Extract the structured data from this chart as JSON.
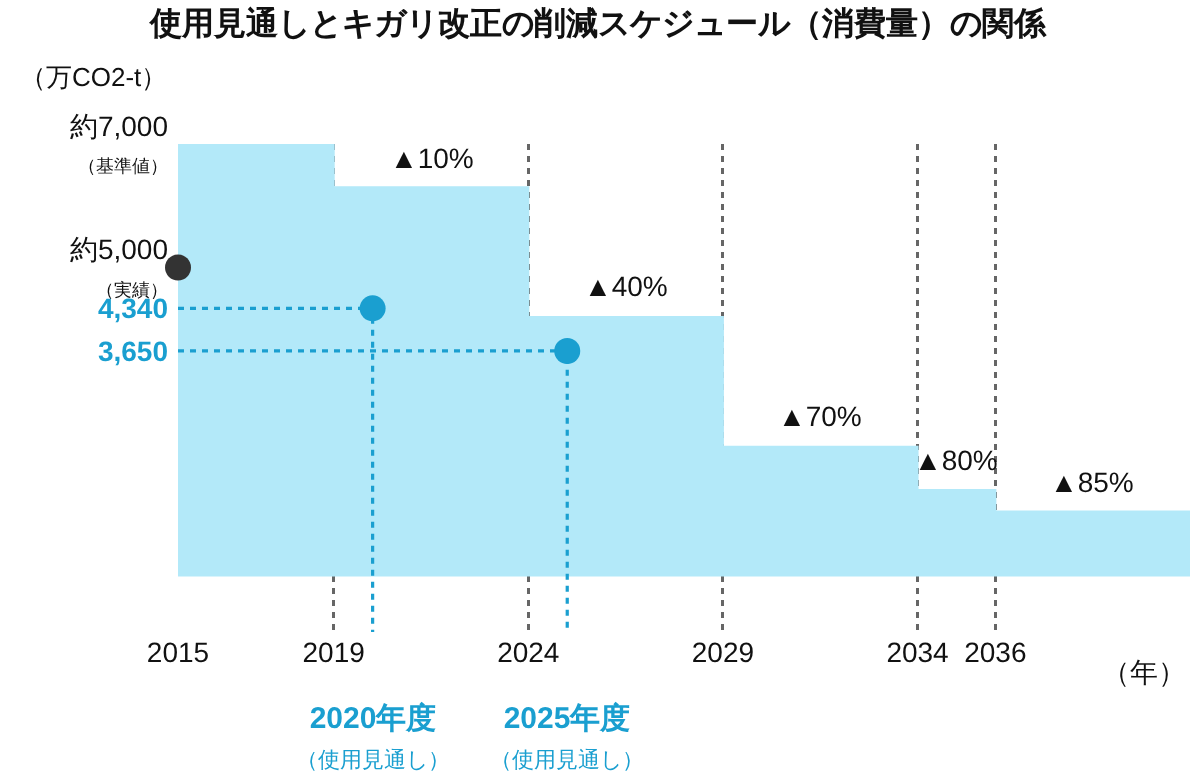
{
  "chart_data": {
    "type": "area",
    "title": "使用見通しとキガリ改正の削減スケジュール（消費量）の関係",
    "ylabel": "（万CO2-t）",
    "xlabel": "（年）",
    "xlim": [
      2015,
      2041
    ],
    "xticks": [
      2015,
      2019,
      2024,
      2029,
      2034,
      2036
    ],
    "ylim": [
      -900,
      7000
    ],
    "yticks": [
      {
        "value": 7000,
        "label": "約7,000（基準値）"
      },
      {
        "value": 5000,
        "label": "約5,000（実績）"
      },
      {
        "value": 4340,
        "label": "4,340"
      },
      {
        "value": 3650,
        "label": "3,650"
      }
    ],
    "grid": "x",
    "series": [
      {
        "marker": "none",
        "color": "#b3e9f9",
        "x": [
          2015,
          2019,
          2019,
          2024,
          2024,
          2029,
          2029,
          2034,
          2034,
          2036,
          2036,
          2041
        ],
        "values": [
          7000,
          7000,
          6300,
          6300,
          4200,
          4200,
          2100,
          2100,
          1400,
          1400,
          1050,
          1050
        ]
      },
      {
        "type": "line",
        "line_style": "dotted",
        "marker": "none",
        "color": "#1a9fd0",
        "x": [
          2015,
          2020,
          2020
        ],
        "values": [
          4340,
          4340,
          -900
        ]
      },
      {
        "type": "line",
        "line_style": "dotted",
        "marker": "none",
        "color": "#1a9fd0",
        "x": [
          2015,
          2025,
          2025
        ],
        "values": [
          3650,
          3650,
          -900
        ]
      },
      {
        "type": "scatter",
        "marker": "circle",
        "color": "#333333",
        "x": [
          2015
        ],
        "values": [
          5000
        ]
      },
      {
        "type": "scatter",
        "marker": "circle",
        "color": "#1a9fd0",
        "x": [
          2020,
          2025
        ],
        "values": [
          4340,
          3650
        ]
      }
    ],
    "annotations": [
      {
        "text": "▲10%",
        "x": 2021.5,
        "y": 6300
      },
      {
        "text": "▲40%",
        "x": 2026.5,
        "y": 4200
      },
      {
        "text": "▲70%",
        "x": 2031.5,
        "y": 2100
      },
      {
        "text": "▲80%",
        "x": 2035,
        "y": 1400
      },
      {
        "text": "▲85%",
        "x": 2038.5,
        "y": 1050
      },
      "2020年度（使用見通し）",
      "2025年度（使用見通し）"
    ]
  }
}
